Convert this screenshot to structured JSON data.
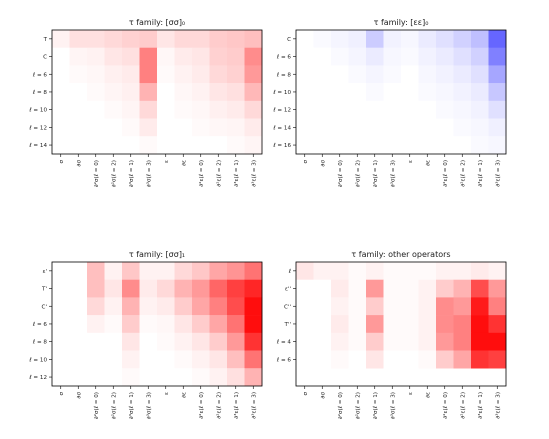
{
  "chart_data": [
    {
      "type": "heatmap",
      "title": "τ family: [σσ]₀",
      "color": "#ff0000",
      "x_labels": [
        "σ",
        "∂σ",
        "∂²σ(ℓ = 0)",
        "∂²σ(ℓ = 2)",
        "∂³σ(ℓ = 1)",
        "∂³σ(ℓ = 3)",
        "ε",
        "∂ε",
        "∂²ε(ℓ = 0)",
        "∂²ε(ℓ = 2)",
        "∂³ε(ℓ = 1)",
        "∂³ε(ℓ = 3)"
      ],
      "y_labels": [
        "T",
        "C",
        "ℓ = 6",
        "ℓ = 8",
        "ℓ = 10",
        "ℓ = 12",
        "ℓ = 14"
      ],
      "values": [
        [
          0.05,
          0.12,
          0.12,
          0.15,
          0.18,
          0.2,
          0.1,
          0.15,
          0.15,
          0.2,
          0.22,
          0.25
        ],
        [
          0.0,
          0.04,
          0.05,
          0.1,
          0.12,
          0.5,
          0.03,
          0.08,
          0.1,
          0.18,
          0.2,
          0.45
        ],
        [
          0.0,
          0.02,
          0.03,
          0.06,
          0.08,
          0.5,
          0.02,
          0.05,
          0.08,
          0.15,
          0.18,
          0.4
        ],
        [
          0.0,
          0.0,
          0.02,
          0.04,
          0.06,
          0.3,
          0.0,
          0.03,
          0.05,
          0.1,
          0.12,
          0.28
        ],
        [
          0.0,
          0.0,
          0.0,
          0.02,
          0.04,
          0.15,
          0.0,
          0.02,
          0.03,
          0.06,
          0.08,
          0.15
        ],
        [
          0.0,
          0.0,
          0.0,
          0.0,
          0.02,
          0.08,
          0.0,
          0.0,
          0.02,
          0.03,
          0.04,
          0.08
        ],
        [
          0.0,
          0.0,
          0.0,
          0.0,
          0.0,
          0.02,
          0.0,
          0.0,
          0.0,
          0.0,
          0.02,
          0.04
        ]
      ]
    },
    {
      "type": "heatmap",
      "title": "τ family: [εε]₀",
      "color": "#0000ff",
      "x_labels": [
        "σ",
        "∂σ",
        "∂²σ(ℓ = 0)",
        "∂²σ(ℓ = 2)",
        "∂³σ(ℓ = 1)",
        "∂³σ(ℓ = 3)",
        "ε",
        "∂ε",
        "∂²ε(ℓ = 0)",
        "∂²ε(ℓ = 2)",
        "∂³ε(ℓ = 1)",
        "∂³ε(ℓ = 3)"
      ],
      "y_labels": [
        "C",
        "ℓ = 6",
        "ℓ = 8",
        "ℓ = 10",
        "ℓ = 12",
        "ℓ = 14",
        "ℓ = 16"
      ],
      "values": [
        [
          0.0,
          0.02,
          0.04,
          0.06,
          0.2,
          0.05,
          0.03,
          0.08,
          0.12,
          0.18,
          0.25,
          0.6
        ],
        [
          0.0,
          0.0,
          0.02,
          0.04,
          0.08,
          0.03,
          0.02,
          0.05,
          0.08,
          0.12,
          0.18,
          0.5
        ],
        [
          0.0,
          0.0,
          0.0,
          0.02,
          0.04,
          0.02,
          0.0,
          0.03,
          0.05,
          0.08,
          0.12,
          0.35
        ],
        [
          0.0,
          0.0,
          0.0,
          0.0,
          0.02,
          0.0,
          0.0,
          0.02,
          0.03,
          0.05,
          0.08,
          0.22
        ],
        [
          0.0,
          0.0,
          0.0,
          0.0,
          0.0,
          0.0,
          0.0,
          0.0,
          0.02,
          0.03,
          0.05,
          0.12
        ],
        [
          0.0,
          0.0,
          0.0,
          0.0,
          0.0,
          0.0,
          0.0,
          0.0,
          0.0,
          0.02,
          0.03,
          0.06
        ],
        [
          0.0,
          0.0,
          0.0,
          0.0,
          0.0,
          0.0,
          0.0,
          0.0,
          0.0,
          0.0,
          0.02,
          0.03
        ]
      ]
    },
    {
      "type": "heatmap",
      "title": "τ family: [σσ]₁",
      "color": "#ff0000",
      "x_labels": [
        "σ",
        "∂σ",
        "∂²σ(ℓ = 0)",
        "∂²σ(ℓ = 2)",
        "∂³σ(ℓ = 1)",
        "∂³σ(ℓ = 3)",
        "ε",
        "∂ε",
        "∂²ε(ℓ = 0)",
        "∂²ε(ℓ = 2)",
        "∂³ε(ℓ = 1)",
        "∂³ε(ℓ = 3)"
      ],
      "y_labels": [
        "ε'",
        "T'",
        "C'",
        "ℓ = 6",
        "ℓ = 8",
        "ℓ = 10",
        "ℓ = 12"
      ],
      "values": [
        [
          0.0,
          0.0,
          0.25,
          0.05,
          0.22,
          0.05,
          0.05,
          0.15,
          0.22,
          0.35,
          0.42,
          0.55
        ],
        [
          0.0,
          0.0,
          0.25,
          0.1,
          0.45,
          0.08,
          0.15,
          0.3,
          0.4,
          0.6,
          0.75,
          0.85
        ],
        [
          0.0,
          0.0,
          0.15,
          0.05,
          0.3,
          0.05,
          0.08,
          0.2,
          0.35,
          0.5,
          0.7,
          0.95
        ],
        [
          0.0,
          0.0,
          0.05,
          0.02,
          0.2,
          0.02,
          0.03,
          0.1,
          0.2,
          0.35,
          0.55,
          0.95
        ],
        [
          0.0,
          0.0,
          0.0,
          0.0,
          0.1,
          0.0,
          0.02,
          0.05,
          0.1,
          0.2,
          0.4,
          0.8
        ],
        [
          0.0,
          0.0,
          0.0,
          0.0,
          0.05,
          0.0,
          0.0,
          0.02,
          0.05,
          0.1,
          0.25,
          0.55
        ],
        [
          0.0,
          0.0,
          0.0,
          0.0,
          0.02,
          0.0,
          0.0,
          0.0,
          0.02,
          0.05,
          0.12,
          0.3
        ]
      ]
    },
    {
      "type": "heatmap",
      "title": "τ family: other operators",
      "color": "#ff0000",
      "x_labels": [
        "σ",
        "∂σ",
        "∂²σ(ℓ = 0)",
        "∂²σ(ℓ = 2)",
        "∂³σ(ℓ = 1)",
        "∂³σ(ℓ = 3)",
        "ε",
        "∂ε",
        "∂²ε(ℓ = 0)",
        "∂²ε(ℓ = 2)",
        "∂³ε(ℓ = 1)",
        "∂³ε(ℓ = 3)"
      ],
      "y_labels": [
        "ℓ",
        "ε''",
        "C''",
        "T''",
        "ℓ = 4",
        "ℓ = 6"
      ],
      "values": [
        [
          0.1,
          0.05,
          0.05,
          0.02,
          0.05,
          0.02,
          0.02,
          0.02,
          0.05,
          0.05,
          0.08,
          0.05
        ],
        [
          0.0,
          0.0,
          0.08,
          0.02,
          0.4,
          0.02,
          0.02,
          0.05,
          0.2,
          0.3,
          0.7,
          0.4
        ],
        [
          0.0,
          0.0,
          0.05,
          0.02,
          0.2,
          0.02,
          0.02,
          0.05,
          0.45,
          0.4,
          0.9,
          0.5
        ],
        [
          0.0,
          0.0,
          0.08,
          0.02,
          0.4,
          0.02,
          0.02,
          0.05,
          0.45,
          0.5,
          0.95,
          0.8
        ],
        [
          0.0,
          0.0,
          0.05,
          0.02,
          0.2,
          0.02,
          0.02,
          0.05,
          0.4,
          0.5,
          0.95,
          0.95
        ],
        [
          0.0,
          0.0,
          0.02,
          0.0,
          0.1,
          0.0,
          0.0,
          0.02,
          0.2,
          0.35,
          0.8,
          0.75
        ]
      ]
    }
  ]
}
